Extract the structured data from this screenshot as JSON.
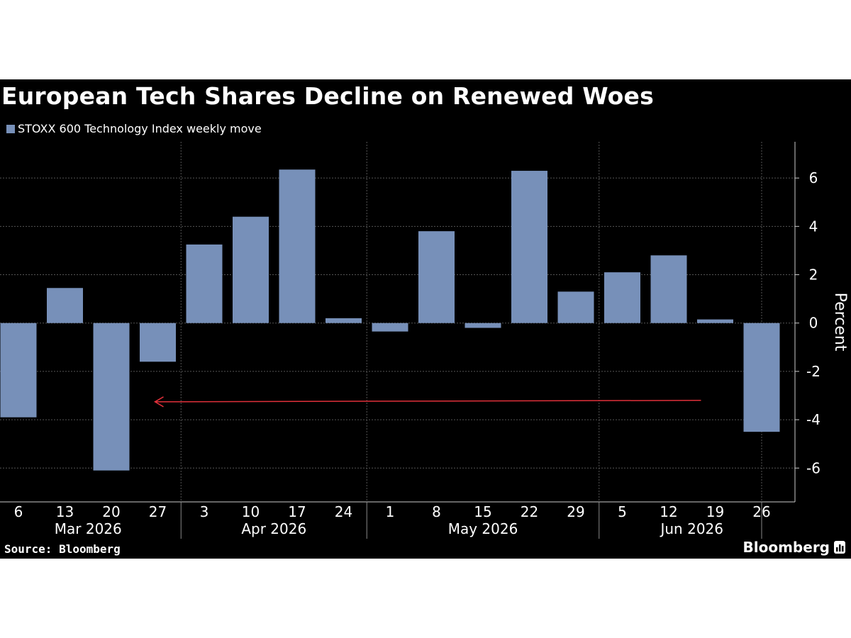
{
  "header": {
    "title": "European Tech Shares Decline on Renewed Woes"
  },
  "footer": {
    "source": "Source: Bloomberg",
    "brand": "Bloomberg"
  },
  "colors": {
    "background": "#000000",
    "bar": "#7790b9",
    "arrow": "#e0303a",
    "grid": "#555555",
    "text": "#ffffff"
  },
  "chart_data": {
    "type": "bar",
    "title": "European Tech Shares Decline on Renewed Woes",
    "series": [
      {
        "name": "STOXX 600 Technology Index weekly move",
        "color": "#7790b9",
        "values": [
          -3.9,
          1.45,
          -6.1,
          -1.6,
          3.25,
          4.4,
          6.35,
          0.2,
          -0.35,
          3.8,
          -0.2,
          6.3,
          1.3,
          2.1,
          2.8,
          0.15,
          -4.5
        ]
      }
    ],
    "categories": [
      "6",
      "13",
      "20",
      "27",
      "3",
      "10",
      "17",
      "24",
      "1",
      "8",
      "15",
      "22",
      "29",
      "5",
      "12",
      "19",
      "26"
    ],
    "month_groups": [
      {
        "label": "Mar 2026",
        "start": 0,
        "end": 3
      },
      {
        "label": "Apr 2026",
        "start": 4,
        "end": 7
      },
      {
        "label": "May 2026",
        "start": 8,
        "end": 12
      },
      {
        "label": "Jun 2026",
        "start": 13,
        "end": 16
      }
    ],
    "ylabel": "Percent",
    "yticks": [
      -6,
      -4,
      -2,
      0,
      2,
      4,
      6
    ],
    "ylim": [
      -7.4,
      7.5
    ],
    "y_axis_side": "right",
    "grid": true,
    "legend_position": "top-left",
    "annotation": {
      "type": "arrow",
      "from_category": "19",
      "to_category": "27",
      "y": -3.2,
      "color": "#e0303a"
    }
  }
}
